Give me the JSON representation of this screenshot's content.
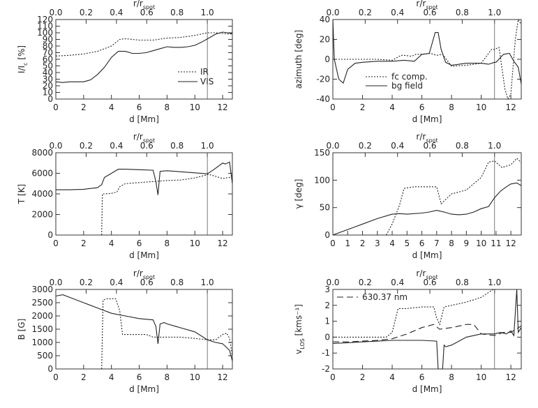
{
  "chart_data": [
    {
      "id": "intensity",
      "type": "line",
      "top_axis": {
        "label": "r/r",
        "label_sub": "spot",
        "ticks": [
          "0.0",
          "0.2",
          "0.4",
          "0.6",
          "0.8",
          "1.0"
        ],
        "tick_values": [
          0,
          0.2,
          0.4,
          0.6,
          0.8,
          1.0
        ]
      },
      "xlabel": "d [Mm]",
      "ylabel": "I/I",
      "ylabel_sub": "c",
      "ylabel_unit": " [%]",
      "xlim": [
        0,
        12.7
      ],
      "ylim": [
        0,
        120
      ],
      "xticks": [
        "0",
        "2",
        "4",
        "6",
        "8",
        "10",
        "12"
      ],
      "xtick_values": [
        0,
        2,
        4,
        6,
        8,
        10,
        12
      ],
      "yticks": [
        "0",
        "10",
        "20",
        "30",
        "40",
        "50",
        "60",
        "70",
        "80",
        "90",
        "100",
        "110",
        "120"
      ],
      "ytick_values": [
        0,
        10,
        20,
        30,
        40,
        50,
        60,
        70,
        80,
        90,
        100,
        110,
        120
      ],
      "vline": 10.9,
      "legend": "right-middle",
      "series": [
        {
          "name": "IR",
          "style": "dotted",
          "x": [
            0,
            1,
            2,
            3,
            4,
            4.6,
            5,
            6,
            7,
            8,
            9,
            10,
            10.9,
            11.5,
            12,
            12.7
          ],
          "y": [
            65,
            66,
            68,
            72,
            80,
            90,
            91,
            89,
            89,
            92,
            93,
            96,
            100,
            100,
            99,
            98
          ]
        },
        {
          "name": "VIS",
          "style": "solid",
          "x": [
            0,
            0.5,
            1,
            2,
            2.5,
            3,
            3.5,
            4,
            4.5,
            5,
            5.5,
            6,
            6.5,
            7,
            7.5,
            8,
            8.5,
            9,
            9.5,
            10,
            10.5,
            11,
            11.5,
            12,
            12.7
          ],
          "y": [
            26,
            25,
            26,
            26,
            29,
            37,
            48,
            63,
            72,
            72,
            69,
            69,
            70,
            73,
            76,
            79,
            78,
            78,
            79,
            81,
            86,
            92,
            98,
            101,
            99
          ]
        }
      ]
    },
    {
      "id": "azimuth",
      "type": "line",
      "top_axis": {
        "label": "r/r",
        "label_sub": "spot",
        "ticks": [
          "0.0",
          "0.2",
          "0.4",
          "0.6",
          "0.8",
          "1.0"
        ],
        "tick_values": [
          0,
          0.2,
          0.4,
          0.6,
          0.8,
          1.0
        ]
      },
      "xlabel": "d [Mm]",
      "ylabel": "azimuth [deg]",
      "ylabel_sub": "",
      "ylabel_unit": "",
      "xlim": [
        0,
        12.7
      ],
      "ylim": [
        -40,
        40
      ],
      "xticks": [
        "0",
        "2",
        "4",
        "6",
        "8",
        "10",
        "12"
      ],
      "xtick_values": [
        0,
        2,
        4,
        6,
        8,
        10,
        12
      ],
      "yticks": [
        "-40",
        "-20",
        "0",
        "20",
        "40"
      ],
      "ytick_values": [
        -40,
        -20,
        0,
        20,
        40
      ],
      "vline": 10.9,
      "legend": "bottom-center",
      "series": [
        {
          "name": "fc comp.",
          "style": "dotted",
          "x": [
            0,
            1,
            2,
            3,
            4,
            4.6,
            4.8,
            5.3,
            5.6,
            6,
            6.6,
            7,
            7.4,
            8,
            9,
            10,
            10.7,
            10.9,
            11.2,
            11.6,
            11.8,
            12,
            12.3,
            12.5,
            12.7
          ],
          "y": [
            0,
            0,
            0,
            0,
            -1,
            4,
            4,
            3,
            5,
            5,
            6,
            4,
            5,
            -7,
            -6,
            -4,
            10,
            10,
            12,
            -30,
            -40,
            -35,
            20,
            40,
            35
          ]
        },
        {
          "name": "bg field",
          "style": "solid",
          "x": [
            0,
            0.1,
            0.4,
            0.7,
            1,
            1.5,
            2,
            3,
            4,
            4.8,
            5.5,
            6,
            6.5,
            6.9,
            7.1,
            7.3,
            7.6,
            8,
            9,
            10,
            10.5,
            10.9,
            11,
            11.5,
            11.9,
            12.2,
            12.5,
            12.7
          ],
          "y": [
            40,
            0,
            -20,
            -24,
            -10,
            -4,
            -3,
            -2,
            -2,
            -1,
            -2,
            5,
            6,
            27,
            27,
            10,
            -3,
            -6,
            -4,
            -4,
            -5,
            -3,
            -3,
            5,
            6,
            -2,
            -8,
            -25
          ]
        }
      ]
    },
    {
      "id": "temperature",
      "type": "line",
      "top_axis": {
        "label": "r/r",
        "label_sub": "spot",
        "ticks": [
          "0.0",
          "0.2",
          "0.4",
          "0.6",
          "0.8",
          "1.0"
        ],
        "tick_values": [
          0,
          0.2,
          0.4,
          0.6,
          0.8,
          1.0
        ]
      },
      "xlabel": "d [Mm]",
      "ylabel": "T [K]",
      "ylabel_sub": "",
      "ylabel_unit": "",
      "xlim": [
        0,
        12.7
      ],
      "ylim": [
        0,
        8000
      ],
      "xticks": [
        "0",
        "2",
        "4",
        "6",
        "8",
        "10",
        "12"
      ],
      "xtick_values": [
        0,
        2,
        4,
        6,
        8,
        10,
        12
      ],
      "yticks": [
        "0",
        "2000",
        "4000",
        "6000",
        "8000"
      ],
      "ytick_values": [
        0,
        2000,
        4000,
        6000,
        8000
      ],
      "vline": 10.9,
      "series": [
        {
          "name": "IR",
          "style": "dotted",
          "x": [
            3.3,
            3.35,
            3.5,
            4.0,
            4.4,
            4.6,
            5,
            6,
            7,
            7.5,
            8,
            9,
            10,
            11,
            11.5,
            12,
            12.5,
            12.7
          ],
          "y": [
            0,
            4000,
            4000,
            4050,
            4200,
            4700,
            5000,
            5100,
            5200,
            5250,
            5300,
            5350,
            5550,
            5900,
            5700,
            5500,
            5600,
            5800
          ]
        },
        {
          "name": "VIS",
          "style": "solid",
          "x": [
            0,
            1,
            2,
            3,
            3.3,
            3.5,
            4,
            4.5,
            5,
            6,
            7,
            7.2,
            7.35,
            7.5,
            8,
            9,
            10,
            10.9,
            11.3,
            11.6,
            12,
            12.2,
            12.5,
            12.7
          ],
          "y": [
            4400,
            4400,
            4450,
            4600,
            4900,
            5600,
            6000,
            6400,
            6400,
            6350,
            6300,
            5200,
            3900,
            6200,
            6250,
            6150,
            6050,
            5950,
            6300,
            6600,
            7000,
            6900,
            7100,
            5000
          ]
        }
      ]
    },
    {
      "id": "inclination",
      "type": "line",
      "top_axis": {
        "label": "r/r",
        "label_sub": "spot",
        "ticks": [
          "0.0",
          "0.2",
          "0.4",
          "0.6",
          "0.8",
          "1.0"
        ],
        "tick_values": [
          0,
          0.2,
          0.4,
          0.6,
          0.8,
          1.0
        ]
      },
      "xlabel": "d [Mm]",
      "ylabel": "γ [deg]",
      "ylabel_sub": "",
      "ylabel_unit": "",
      "xlim": [
        0,
        12.7
      ],
      "ylim": [
        0,
        150
      ],
      "xticks": [
        "0",
        "1",
        "2",
        "3",
        "4",
        "5",
        "6",
        "7",
        "8",
        "9",
        "10",
        "11",
        "12"
      ],
      "xtick_values": [
        0,
        1,
        2,
        3,
        4,
        5,
        6,
        7,
        8,
        9,
        10,
        11,
        12
      ],
      "yticks": [
        "0",
        "50",
        "100",
        "150"
      ],
      "ytick_values": [
        0,
        50,
        100,
        150
      ],
      "vline": 10.9,
      "series": [
        {
          "name": "fc comp.",
          "style": "dotted",
          "x": [
            3.6,
            4.0,
            4.5,
            4.8,
            5.5,
            6.5,
            7.0,
            7.3,
            8.0,
            9.0,
            10.0,
            10.5,
            10.9,
            11.4,
            12.0,
            12.4,
            12.7
          ],
          "y": [
            0,
            20,
            55,
            85,
            88,
            88,
            88,
            57,
            75,
            82,
            105,
            133,
            135,
            123,
            128,
            140,
            132
          ]
        },
        {
          "name": "bg field",
          "style": "solid",
          "x": [
            0,
            1,
            2,
            3,
            4,
            4.5,
            5,
            6,
            6.5,
            7,
            7.5,
            8,
            8.5,
            9,
            9.5,
            10,
            10.5,
            10.9,
            11.3,
            11.7,
            12,
            12.4,
            12.7
          ],
          "y": [
            0,
            10,
            20,
            30,
            38,
            39,
            38,
            40,
            42,
            45,
            42,
            38,
            37,
            38,
            42,
            48,
            52,
            68,
            80,
            88,
            93,
            95,
            90
          ]
        }
      ]
    },
    {
      "id": "field_strength",
      "type": "line",
      "top_axis": {
        "label": "r/r",
        "label_sub": "spot",
        "ticks": [
          "0.0",
          "0.2",
          "0.4",
          "0.6",
          "0.8",
          "1.0"
        ],
        "tick_values": [
          0,
          0.2,
          0.4,
          0.6,
          0.8,
          1.0
        ]
      },
      "xlabel": "d [Mm]",
      "ylabel": "B [G]",
      "ylabel_sub": "",
      "ylabel_unit": "",
      "xlim": [
        0,
        12.7
      ],
      "ylim": [
        0,
        3000
      ],
      "xticks": [
        "0",
        "2",
        "4",
        "6",
        "8",
        "10",
        "12"
      ],
      "xtick_values": [
        0,
        2,
        4,
        6,
        8,
        10,
        12
      ],
      "yticks": [
        "0",
        "500",
        "1000",
        "1500",
        "2000",
        "2500",
        "3000"
      ],
      "ytick_values": [
        0,
        500,
        1000,
        1500,
        2000,
        2500,
        3000
      ],
      "vline": 10.9,
      "series": [
        {
          "name": "IR",
          "style": "dotted",
          "x": [
            3.3,
            3.4,
            3.7,
            4.3,
            4.6,
            4.8,
            5.5,
            6.5,
            7,
            7.5,
            8.5,
            9,
            10,
            11,
            11.5,
            12,
            12.3,
            12.5,
            12.7
          ],
          "y": [
            0,
            2600,
            2650,
            2650,
            2200,
            1300,
            1300,
            1300,
            1200,
            1200,
            1200,
            1200,
            1150,
            1100,
            1100,
            1300,
            1350,
            1150,
            500
          ]
        },
        {
          "name": "VIS",
          "style": "solid",
          "x": [
            0,
            0.5,
            1,
            2,
            3,
            4,
            5,
            6,
            7,
            7.2,
            7.35,
            7.5,
            7.8,
            8,
            9,
            10,
            10.9,
            11.5,
            12,
            12.5,
            12.7
          ],
          "y": [
            2750,
            2800,
            2700,
            2500,
            2300,
            2100,
            2000,
            1900,
            1850,
            1600,
            950,
            1700,
            1750,
            1700,
            1550,
            1400,
            1100,
            1000,
            950,
            700,
            300
          ]
        }
      ]
    },
    {
      "id": "velocity",
      "type": "line",
      "top_axis": {
        "label": "r/r",
        "label_sub": "spot",
        "ticks": [
          "0.0",
          "0.2",
          "0.4",
          "0.6",
          "0.8",
          "1.0"
        ],
        "tick_values": [
          0,
          0.2,
          0.4,
          0.6,
          0.8,
          1.0
        ]
      },
      "xlabel": "d [Mm]",
      "ylabel": "v",
      "ylabel_sub": "LOS",
      "ylabel_unit": " [kms⁻¹]",
      "xlim": [
        0,
        12.7
      ],
      "ylim": [
        -2,
        3
      ],
      "xticks": [
        "0",
        "2",
        "4",
        "6",
        "8",
        "10",
        "12"
      ],
      "xtick_values": [
        0,
        2,
        4,
        6,
        8,
        10,
        12
      ],
      "yticks": [
        "-2",
        "-1",
        "0",
        "1",
        "2",
        "3"
      ],
      "ytick_values": [
        -2,
        -1,
        0,
        1,
        2,
        3
      ],
      "vline": 10.9,
      "legend": "top-left",
      "series": [
        {
          "name": "fc comp.",
          "style": "dotted",
          "x": [
            0,
            1,
            2,
            3,
            3.6,
            4.0,
            4.4,
            5,
            6,
            6.8,
            7.0,
            7.2,
            7.5,
            8,
            9,
            10,
            10.8,
            11.0
          ],
          "y": [
            0,
            0,
            0,
            0,
            0,
            0.3,
            1.8,
            1.8,
            1.9,
            1.9,
            1.2,
            0.8,
            1.9,
            2.0,
            2.2,
            2.5,
            3.0,
            3.0
          ]
        },
        {
          "name": "bg field",
          "style": "solid",
          "x": [
            0,
            1,
            2,
            3,
            4,
            5,
            6,
            7,
            7.1,
            7.2,
            7.4,
            7.5,
            7.6,
            8,
            9,
            10,
            10.9,
            11.3,
            11.7,
            12,
            12.2,
            12.4,
            12.5,
            12.7
          ],
          "y": [
            -0.4,
            -0.35,
            -0.3,
            -0.25,
            -0.2,
            -0.2,
            -0.2,
            -0.25,
            -2.0,
            -2.0,
            -2.0,
            -0.5,
            -0.6,
            -0.5,
            0.0,
            0.2,
            0.2,
            0.3,
            0.2,
            0.4,
            0.1,
            3.0,
            0.3,
            0.6
          ]
        },
        {
          "name": "630.37 nm",
          "style": "dashed",
          "x": [
            0,
            1,
            2,
            3,
            4,
            5,
            6,
            6.8,
            7.2,
            8,
            9,
            9.5,
            10,
            10.9,
            11.5,
            12,
            12.7
          ],
          "y": [
            -0.3,
            -0.3,
            -0.25,
            -0.2,
            -0.1,
            0.2,
            0.6,
            0.8,
            0.5,
            0.6,
            0.8,
            0.8,
            0.2,
            0.1,
            0.3,
            0.3,
            0.7
          ]
        }
      ]
    }
  ]
}
